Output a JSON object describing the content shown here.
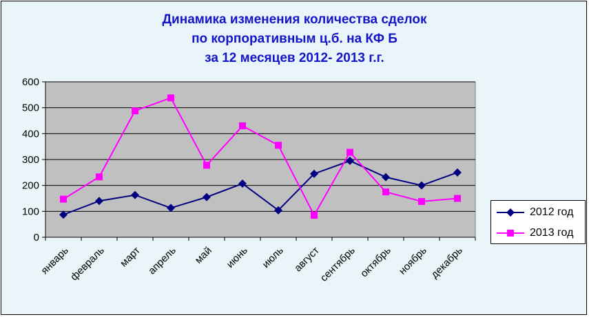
{
  "chart_data": {
    "type": "line",
    "title": [
      "Динамика изменения количества сделок",
      "по корпоративным ц.б. на КФ Б",
      "за 12 месяцев 2012- 2013 г.г."
    ],
    "categories": [
      "январь",
      "февраль",
      "март",
      "апрель",
      "май",
      "июнь",
      "июль",
      "август",
      "сентябрь",
      "октябрь",
      "ноябрь",
      "декабрь"
    ],
    "yticks": [
      "0",
      "100",
      "200",
      "300",
      "400",
      "500",
      "600"
    ],
    "ylim": [
      0,
      600
    ],
    "grid": true,
    "legend_position": "right",
    "series": [
      {
        "name": "2012 год",
        "color": "#000080",
        "marker": "diamond",
        "values": [
          87,
          140,
          163,
          113,
          155,
          207,
          104,
          245,
          295,
          232,
          200,
          250
        ]
      },
      {
        "name": "2013 год",
        "color": "#ff00ff",
        "marker": "square",
        "values": [
          147,
          233,
          488,
          538,
          278,
          430,
          355,
          85,
          328,
          175,
          138,
          150
        ]
      }
    ],
    "colors": {
      "plot_bg": "#c0c0c0",
      "chart_bg": "#e9f5f9",
      "title": "#1414c8"
    }
  }
}
